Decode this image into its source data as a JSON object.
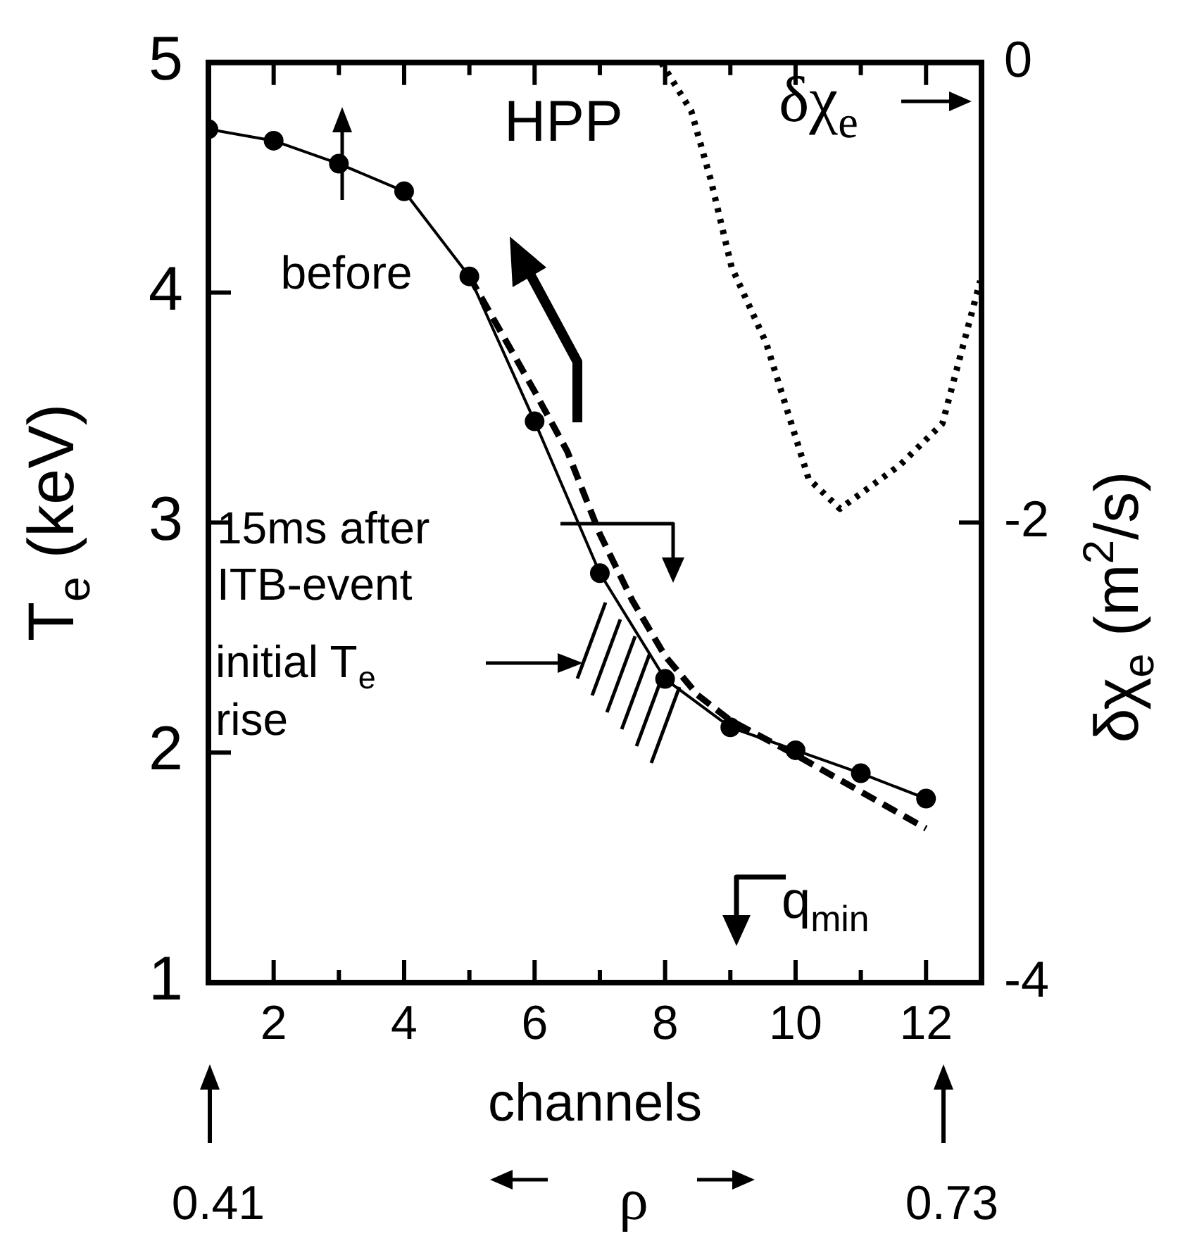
{
  "chart_data": {
    "type": "line",
    "xlabel": "channels",
    "ylabel": "T$_{e}$ (keV)",
    "y2label": "δχ$_{e}$ (m$^{2}$/s)",
    "xlim": [
      1,
      12.85
    ],
    "xticks": [
      2,
      {
        "value": 3,
        "label": null
      },
      4,
      {
        "value": 5,
        "label": null
      },
      6,
      {
        "value": 7,
        "label": null
      },
      8,
      {
        "value": 9,
        "label": null
      },
      10,
      {
        "value": 11,
        "label": null
      },
      12
    ],
    "ylim": [
      1,
      5
    ],
    "yticks": [
      1,
      2,
      3,
      4,
      5
    ],
    "y2lim": [
      -4,
      0
    ],
    "y2ticks": [
      -4,
      -2,
      0
    ],
    "series": [
      {
        "color": "#000000",
        "marker": "circle",
        "line_style": "solid",
        "x": [
          1,
          2,
          3,
          4,
          5,
          6,
          7,
          8,
          9,
          10,
          11,
          12
        ],
        "values": [
          4.71,
          4.66,
          4.56,
          4.44,
          4.07,
          3.44,
          2.78,
          2.32,
          2.11,
          2.01,
          1.91,
          1.8
        ]
      },
      {
        "color": "#000000",
        "marker": "none",
        "line_style": "dashed",
        "x": [
          5,
          6,
          6.5,
          7,
          7.5,
          8,
          8.5,
          9,
          10,
          11,
          12
        ],
        "values": [
          4.07,
          3.57,
          3.31,
          2.95,
          2.66,
          2.42,
          2.25,
          2.14,
          1.99,
          1.83,
          1.67
        ]
      },
      {
        "color": "#000000",
        "marker": "none",
        "line_style": "dotted",
        "axis": "y2",
        "x": [
          7.94,
          8.4,
          8.7,
          9.02,
          9.55,
          10.2,
          10.68,
          11.6,
          12.25,
          12.83
        ],
        "values": [
          0,
          -0.21,
          -0.51,
          -0.89,
          -1.22,
          -1.81,
          -1.94,
          -1.75,
          -1.57,
          -0.95
        ]
      }
    ],
    "annotations": [
      "before",
      "15ms after ITB-event",
      "δχ$_{e}$",
      "HPP",
      "initial T$_{e}$ rise",
      "q$_{min}$",
      "0.41",
      "ρ",
      "0.73"
    ]
  }
}
